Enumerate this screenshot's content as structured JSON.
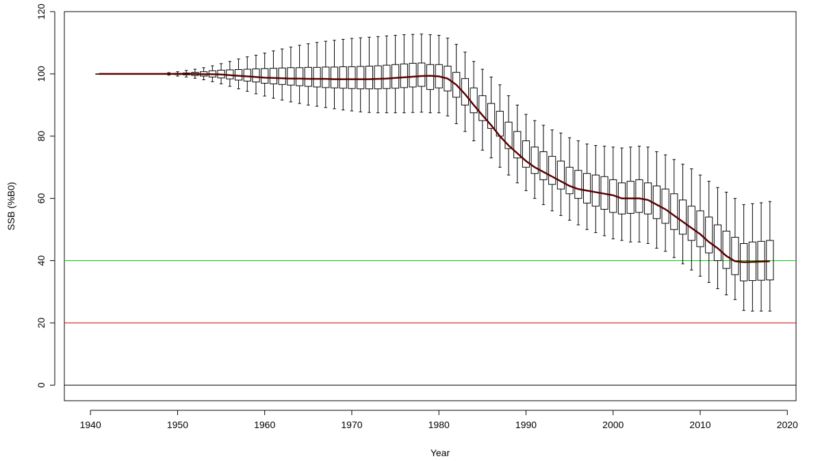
{
  "chart_data": {
    "type": "box",
    "title": "",
    "xlabel": "Year",
    "ylabel": "SSB (%B0)",
    "xlim": [
      1937,
      2021
    ],
    "ylim": [
      -5,
      120
    ],
    "xticks": [
      1940,
      1950,
      1960,
      1970,
      1980,
      1990,
      2000,
      2010,
      2020
    ],
    "yticks": [
      0,
      20,
      40,
      60,
      80,
      100,
      120
    ],
    "grid": false,
    "legend": "none",
    "colors": {
      "median_line": "#5a0000",
      "box_stroke": "#000000",
      "target_line": "#00cc00",
      "limit_line": "#cc0000",
      "zero_line": "#000000"
    },
    "reference_lines": [
      {
        "y": 40,
        "color": "#00cc00"
      },
      {
        "y": 20,
        "color": "#cc0000"
      },
      {
        "y": 0,
        "color": "#000000"
      }
    ],
    "years": [
      1941,
      1942,
      1943,
      1944,
      1945,
      1946,
      1947,
      1948,
      1949,
      1950,
      1951,
      1952,
      1953,
      1954,
      1955,
      1956,
      1957,
      1958,
      1959,
      1960,
      1961,
      1962,
      1963,
      1964,
      1965,
      1966,
      1967,
      1968,
      1969,
      1970,
      1971,
      1972,
      1973,
      1974,
      1975,
      1976,
      1977,
      1978,
      1979,
      1980,
      1981,
      1982,
      1983,
      1984,
      1985,
      1986,
      1987,
      1988,
      1989,
      1990,
      1991,
      1992,
      1993,
      1994,
      1995,
      1996,
      1997,
      1998,
      1999,
      2000,
      2001,
      2002,
      2003,
      2004,
      2005,
      2006,
      2007,
      2008,
      2009,
      2010,
      2011,
      2012,
      2013,
      2014,
      2015,
      2016,
      2017,
      2018
    ],
    "median": [
      100,
      100,
      100,
      100,
      100,
      100,
      100,
      100,
      100,
      100,
      100,
      100,
      99.9,
      99.9,
      99.8,
      99.6,
      99.4,
      99.2,
      99.0,
      98.8,
      98.7,
      98.6,
      98.5,
      98.5,
      98.4,
      98.4,
      98.4,
      98.3,
      98.3,
      98.3,
      98.3,
      98.3,
      98.4,
      98.5,
      98.7,
      98.9,
      99.1,
      99.3,
      99.4,
      99.2,
      98.5,
      96.5,
      93.5,
      90.0,
      86.7,
      83.5,
      80.0,
      77.0,
      74.5,
      72.0,
      70.0,
      68.5,
      67.0,
      65.5,
      64.0,
      63.0,
      62.5,
      62.0,
      61.5,
      61.0,
      60.0,
      60.0,
      60.0,
      59.5,
      58.0,
      56.5,
      54.5,
      52.5,
      50.5,
      48.5,
      46.0,
      44.0,
      41.5,
      39.8,
      39.5,
      39.6,
      39.7,
      39.8
    ],
    "q1": [
      100,
      100,
      100,
      100,
      100,
      100,
      100,
      100,
      99.9,
      99.8,
      99.7,
      99.5,
      99.3,
      99.0,
      98.7,
      98.4,
      98.0,
      97.7,
      97.4,
      97.0,
      96.8,
      96.6,
      96.4,
      96.2,
      96.0,
      95.8,
      95.6,
      95.5,
      95.4,
      95.3,
      95.2,
      95.2,
      95.2,
      95.3,
      95.4,
      95.6,
      95.8,
      96.0,
      95.0,
      95.5,
      94.5,
      92.5,
      90.0,
      87.5,
      85.0,
      82.5,
      80.0,
      76.0,
      73.0,
      70.0,
      68.0,
      66.0,
      64.5,
      63.0,
      61.5,
      60.0,
      58.5,
      57.5,
      56.5,
      55.5,
      55.0,
      55.2,
      55.5,
      55.0,
      53.5,
      52.0,
      50.0,
      48.5,
      46.5,
      44.5,
      42.5,
      40.0,
      37.5,
      35.5,
      33.5,
      33.6,
      33.7,
      33.8
    ],
    "q3": [
      100,
      100,
      100,
      100,
      100,
      100,
      100,
      100,
      100.1,
      100.2,
      100.3,
      100.5,
      100.7,
      101.0,
      101.2,
      101.3,
      101.4,
      101.5,
      101.6,
      101.7,
      101.8,
      101.9,
      102.0,
      102.0,
      102.1,
      102.1,
      102.2,
      102.2,
      102.3,
      102.3,
      102.4,
      102.5,
      102.6,
      102.8,
      103.0,
      103.2,
      103.4,
      103.5,
      103.0,
      103.0,
      102.5,
      100.5,
      98.5,
      95.5,
      93.0,
      90.5,
      88.0,
      84.5,
      81.5,
      78.5,
      76.5,
      75.0,
      73.5,
      72.0,
      70.0,
      69.0,
      68.0,
      67.5,
      67.0,
      66.0,
      65.0,
      65.5,
      66.0,
      65.0,
      64.0,
      63.0,
      61.5,
      59.5,
      57.5,
      56.0,
      54.0,
      51.5,
      49.5,
      47.5,
      45.5,
      46.0,
      46.2,
      46.5
    ],
    "whisker_low": [
      100,
      100,
      100,
      100,
      100,
      100,
      100,
      100,
      99.6,
      99.3,
      99.0,
      98.6,
      98.1,
      97.5,
      96.8,
      96.0,
      95.2,
      94.4,
      93.6,
      92.9,
      92.2,
      91.6,
      91.0,
      90.5,
      90.0,
      89.6,
      89.2,
      88.8,
      88.4,
      88.1,
      87.8,
      87.6,
      87.5,
      87.5,
      87.5,
      87.5,
      87.6,
      87.7,
      87.5,
      87.5,
      86.5,
      84.0,
      81.5,
      78.5,
      75.5,
      73.0,
      70.0,
      67.5,
      65.0,
      62.5,
      60.0,
      58.0,
      56.0,
      54.5,
      53.0,
      51.5,
      50.0,
      49.0,
      48.0,
      47.0,
      46.5,
      46.0,
      46.0,
      45.5,
      44.0,
      43.0,
      41.0,
      39.0,
      37.0,
      35.0,
      33.0,
      31.0,
      29.0,
      27.5,
      24.0,
      23.8,
      23.8,
      23.8
    ],
    "whisker_high": [
      100,
      100,
      100,
      100,
      100,
      100,
      100,
      100,
      100.4,
      100.7,
      101.1,
      101.5,
      102.0,
      102.6,
      103.3,
      104.0,
      104.8,
      105.5,
      106.0,
      106.7,
      107.4,
      108.0,
      108.6,
      109.2,
      109.7,
      110.1,
      110.5,
      110.8,
      111.1,
      111.4,
      111.6,
      111.8,
      112.0,
      112.2,
      112.4,
      112.6,
      112.7,
      112.8,
      112.6,
      112.4,
      111.5,
      109.5,
      107.0,
      104.0,
      101.5,
      99.0,
      96.5,
      93.0,
      90.0,
      87.0,
      85.0,
      83.5,
      82.0,
      81.0,
      79.5,
      78.5,
      77.5,
      77.0,
      76.8,
      76.5,
      76.2,
      76.5,
      76.8,
      76.5,
      75.0,
      74.0,
      72.5,
      71.0,
      69.5,
      67.5,
      65.5,
      63.5,
      62.0,
      60.0,
      58.0,
      58.3,
      58.6,
      59.0
    ]
  }
}
